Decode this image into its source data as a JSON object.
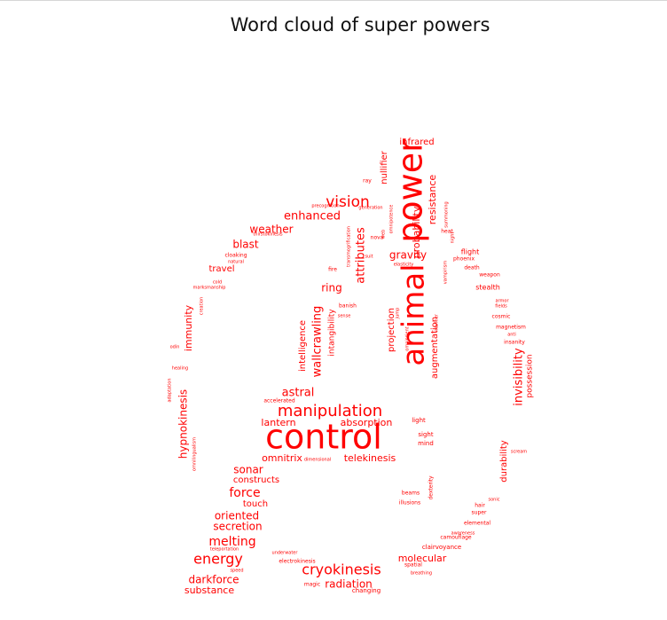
{
  "title": "Word cloud of super powers",
  "colors": {
    "word": "#ff0000",
    "title": "#111111"
  },
  "words": [
    {
      "text": "control"
    },
    {
      "text": "power"
    },
    {
      "text": "animal"
    },
    {
      "text": "manipulation"
    },
    {
      "text": "vision"
    },
    {
      "text": "enhanced"
    },
    {
      "text": "weather"
    },
    {
      "text": "blast"
    },
    {
      "text": "travel"
    },
    {
      "text": "infrared"
    },
    {
      "text": "nullifier"
    },
    {
      "text": "resistance"
    },
    {
      "text": "probability"
    },
    {
      "text": "gravity"
    },
    {
      "text": "attributes"
    },
    {
      "text": "ring"
    },
    {
      "text": "wallcrawling"
    },
    {
      "text": "intelligence"
    },
    {
      "text": "intangibility"
    },
    {
      "text": "projection"
    },
    {
      "text": "augmentation"
    },
    {
      "text": "astral"
    },
    {
      "text": "lantern"
    },
    {
      "text": "absorption"
    },
    {
      "text": "omnitrix"
    },
    {
      "text": "telekinesis"
    },
    {
      "text": "sonar"
    },
    {
      "text": "constructs"
    },
    {
      "text": "force"
    },
    {
      "text": "touch"
    },
    {
      "text": "oriented"
    },
    {
      "text": "secretion"
    },
    {
      "text": "melting"
    },
    {
      "text": "energy"
    },
    {
      "text": "darkforce"
    },
    {
      "text": "substance"
    },
    {
      "text": "cryokinesis"
    },
    {
      "text": "radiation"
    },
    {
      "text": "molecular"
    },
    {
      "text": "invisibility"
    },
    {
      "text": "possession"
    },
    {
      "text": "durability"
    },
    {
      "text": "hypnokinesis"
    },
    {
      "text": "immunity"
    },
    {
      "text": "stealth"
    },
    {
      "text": "flight"
    },
    {
      "text": "phoenix"
    },
    {
      "text": "death"
    },
    {
      "text": "weapon"
    },
    {
      "text": "magnetism"
    },
    {
      "text": "insanity"
    },
    {
      "text": "cosmic"
    },
    {
      "text": "elemental"
    },
    {
      "text": "clairvoyance"
    },
    {
      "text": "camouflage"
    },
    {
      "text": "awareness"
    },
    {
      "text": "super"
    },
    {
      "text": "hair"
    },
    {
      "text": "sonic"
    },
    {
      "text": "light"
    },
    {
      "text": "sight"
    },
    {
      "text": "mind"
    },
    {
      "text": "beams"
    },
    {
      "text": "illusions"
    },
    {
      "text": "dexterity"
    },
    {
      "text": "electrokinesis"
    },
    {
      "text": "spatial"
    },
    {
      "text": "breathing"
    },
    {
      "text": "changing"
    },
    {
      "text": "magic"
    },
    {
      "text": "speed"
    },
    {
      "text": "teleportation"
    },
    {
      "text": "underwater"
    },
    {
      "text": "ray"
    },
    {
      "text": "nova"
    },
    {
      "text": "fire"
    },
    {
      "text": "banish"
    },
    {
      "text": "sense"
    },
    {
      "text": "cloaking"
    },
    {
      "text": "natural"
    },
    {
      "text": "cold"
    },
    {
      "text": "healing"
    },
    {
      "text": "odin"
    },
    {
      "text": "adaptation"
    },
    {
      "text": "omnilingualism"
    },
    {
      "text": "creation"
    },
    {
      "text": "accelerated"
    },
    {
      "text": "dimensional"
    },
    {
      "text": "heat"
    },
    {
      "text": "elasticity"
    },
    {
      "text": "suit"
    },
    {
      "text": "web"
    },
    {
      "text": "jump"
    },
    {
      "text": "fields"
    },
    {
      "text": "armor"
    },
    {
      "text": "anti"
    },
    {
      "text": "scream"
    },
    {
      "text": "precognition"
    },
    {
      "text": "generation"
    },
    {
      "text": "thirstokinesis"
    },
    {
      "text": "marksmanship"
    },
    {
      "text": "transmogrification"
    },
    {
      "text": "mariner"
    },
    {
      "text": "night"
    },
    {
      "text": "summoning"
    },
    {
      "text": "omniscient"
    },
    {
      "text": "vampirism"
    },
    {
      "text": "omnipotence"
    }
  ]
}
